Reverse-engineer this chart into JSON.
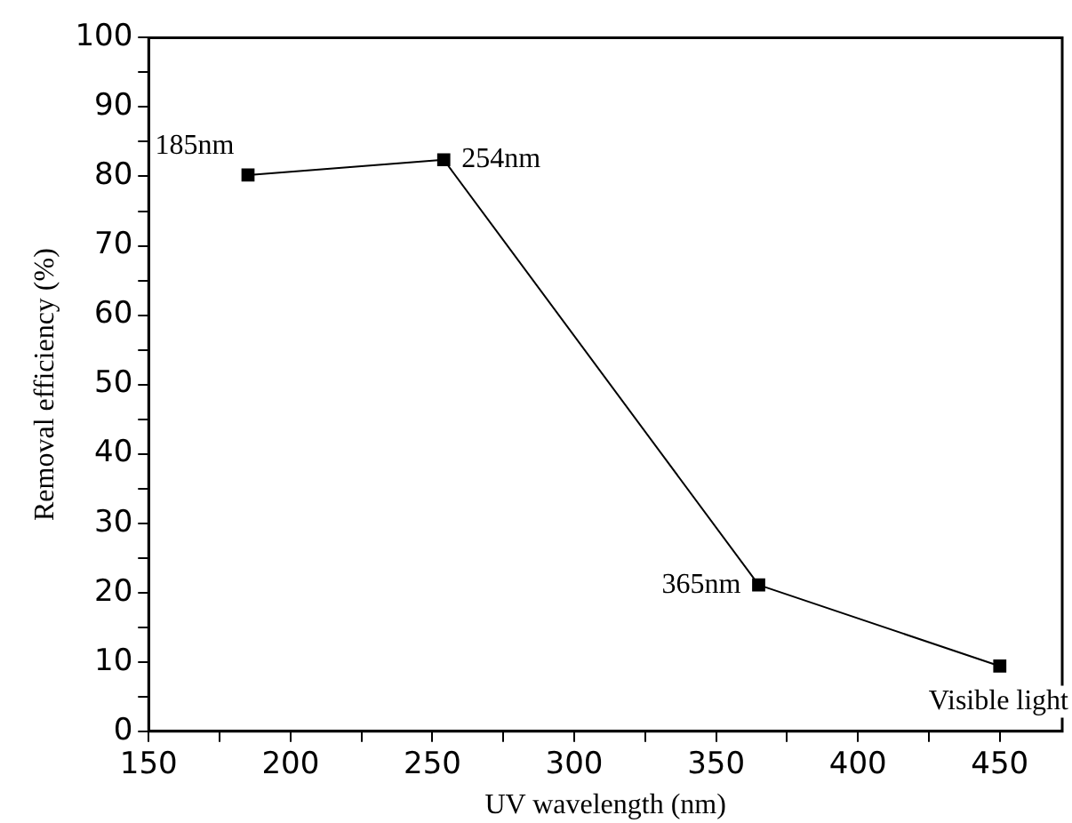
{
  "chart_data": {
    "type": "line",
    "xlabel": "UV wavelength (nm)",
    "ylabel": "Removal efficiency (%)",
    "x": [
      185,
      254,
      365,
      450
    ],
    "series": [
      {
        "color": "#000000",
        "values": [
          80.2,
          82.4,
          21.1,
          9.4
        ]
      }
    ],
    "marker": "square",
    "line_style": "solid",
    "grid": false,
    "legend": false,
    "xlim": [
      150,
      472
    ],
    "xticks": [
      150,
      {
        "value": 175,
        "label": null
      },
      200,
      {
        "value": 225,
        "label": null
      },
      250,
      {
        "value": 275,
        "label": null
      },
      300,
      {
        "value": 325,
        "label": null
      },
      350,
      {
        "value": 375,
        "label": null
      },
      400,
      {
        "value": 425,
        "label": null
      },
      450
    ],
    "ylim": [
      0,
      100
    ],
    "yticks": [
      0,
      {
        "value": 5,
        "label": null
      },
      10,
      {
        "value": 15,
        "label": null
      },
      20,
      {
        "value": 25,
        "label": null
      },
      30,
      {
        "value": 35,
        "label": null
      },
      40,
      {
        "value": 45,
        "label": null
      },
      50,
      {
        "value": 55,
        "label": null
      },
      60,
      {
        "value": 65,
        "label": null
      },
      70,
      {
        "value": 75,
        "label": null
      },
      80,
      {
        "value": 85,
        "label": null
      },
      90,
      {
        "value": 95,
        "label": null
      },
      100
    ],
    "annotations": [
      {
        "text": "185nm",
        "x": 185,
        "y": 80.2
      },
      {
        "text": "254nm",
        "x": 254,
        "y": 82.4
      },
      {
        "text": "365nm",
        "x": 365,
        "y": 21.1
      },
      {
        "text": "Visible light",
        "x": 450,
        "y": 9.4
      }
    ]
  }
}
